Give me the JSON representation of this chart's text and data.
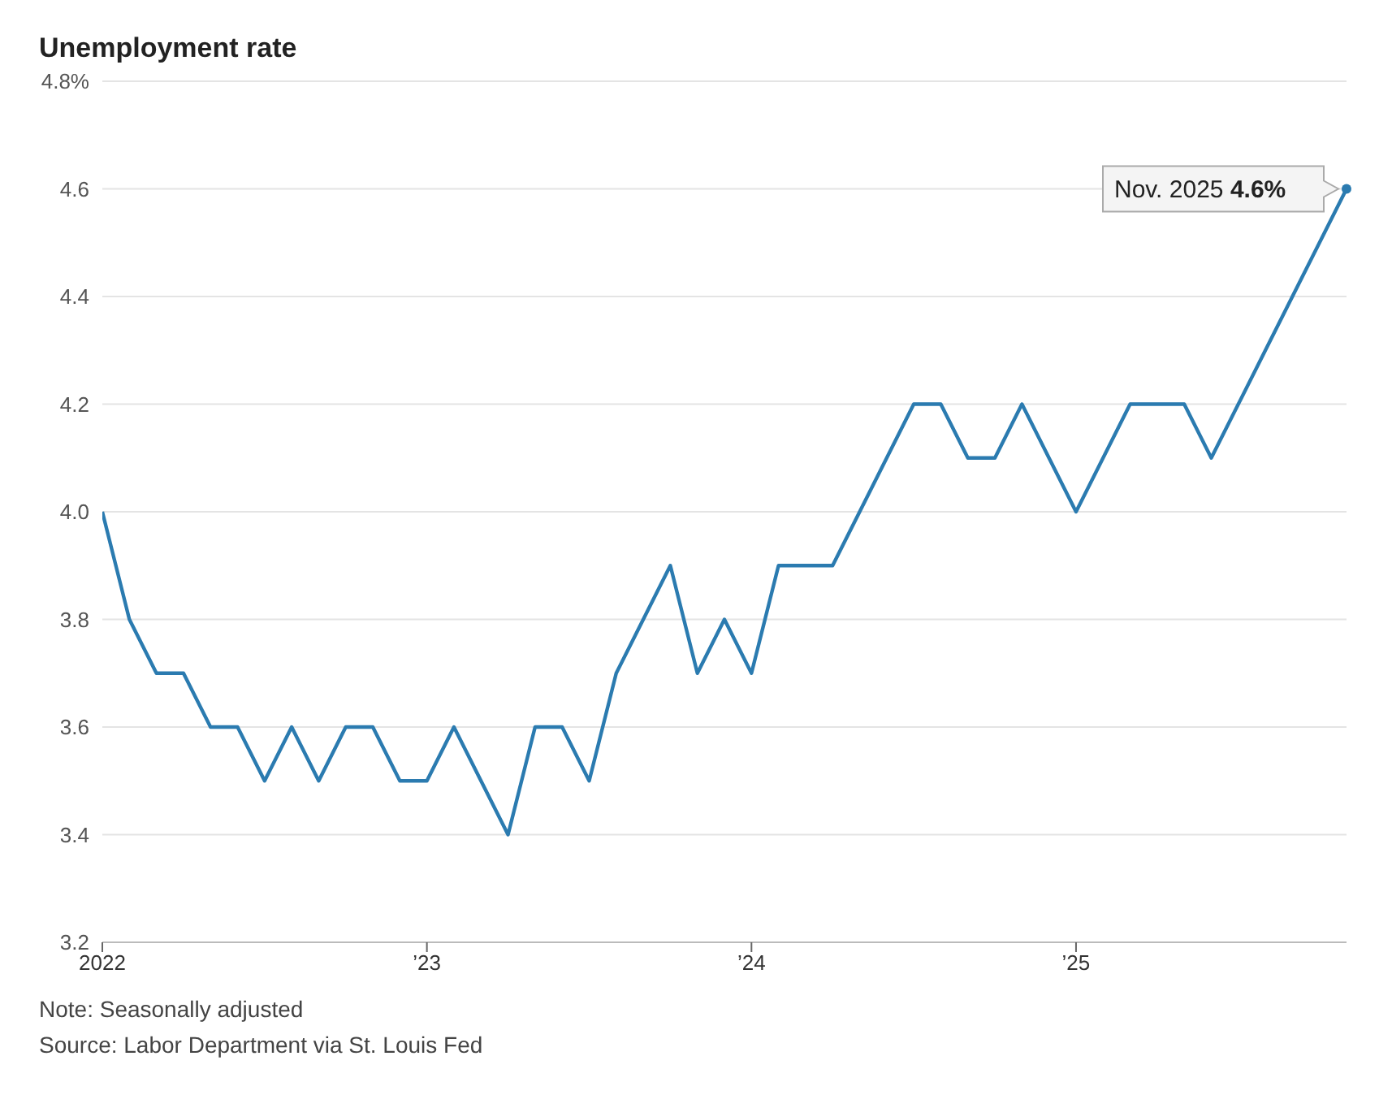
{
  "chart_data": {
    "type": "line",
    "title": "Unemployment rate",
    "x": [
      "2022-01",
      "2022-02",
      "2022-03",
      "2022-04",
      "2022-05",
      "2022-06",
      "2022-07",
      "2022-08",
      "2022-09",
      "2022-10",
      "2022-11",
      "2022-12",
      "2023-01",
      "2023-02",
      "2023-03",
      "2023-04",
      "2023-05",
      "2023-06",
      "2023-07",
      "2023-08",
      "2023-09",
      "2023-10",
      "2023-11",
      "2023-12",
      "2024-01",
      "2024-02",
      "2024-03",
      "2024-04",
      "2024-05",
      "2024-06",
      "2024-07",
      "2024-08",
      "2024-09",
      "2024-10",
      "2024-11",
      "2024-12",
      "2025-01",
      "2025-02",
      "2025-03",
      "2025-04",
      "2025-05",
      "2025-06",
      "2025-07",
      "2025-08",
      "2025-09",
      "2025-11"
    ],
    "series": [
      {
        "color": "#2b7bb0",
        "values": [
          4.0,
          3.8,
          3.7,
          3.7,
          3.6,
          3.6,
          3.5,
          3.6,
          3.5,
          3.6,
          3.6,
          3.5,
          3.5,
          3.6,
          3.5,
          3.4,
          3.6,
          3.6,
          3.5,
          3.7,
          3.8,
          3.9,
          3.7,
          3.8,
          3.7,
          3.9,
          3.9,
          3.9,
          4.0,
          4.1,
          4.2,
          4.2,
          4.1,
          4.1,
          4.2,
          4.1,
          4.0,
          4.1,
          4.2,
          4.2,
          4.2,
          4.1,
          4.2,
          4.3,
          4.4,
          4.6
        ]
      }
    ],
    "xlim": [
      "2022-01",
      "2025-11"
    ],
    "xticks": [
      {
        "value": "2022-01",
        "label": "2022"
      },
      {
        "value": "2023-01",
        "label": "’23"
      },
      {
        "value": "2024-01",
        "label": "’24"
      },
      {
        "value": "2025-01",
        "label": "’25"
      }
    ],
    "ylim": [
      3.2,
      4.8
    ],
    "yticks": [
      3.2,
      3.4,
      3.6,
      3.8,
      {
        "value": 4,
        "label": "4.0"
      },
      4.2,
      4.4,
      4.6,
      {
        "value": 4.8,
        "label": "4.8%"
      }
    ],
    "grid": "y",
    "legend": false,
    "marker": "none",
    "line_style": "solid",
    "annotations": [
      {
        "text": "Nov. 2025 4.6%",
        "x": "2025-11",
        "y": 4.6
      },
      "Note: Seasonally adjusted",
      "Source: Labor Department via St. Louis Fed"
    ]
  }
}
